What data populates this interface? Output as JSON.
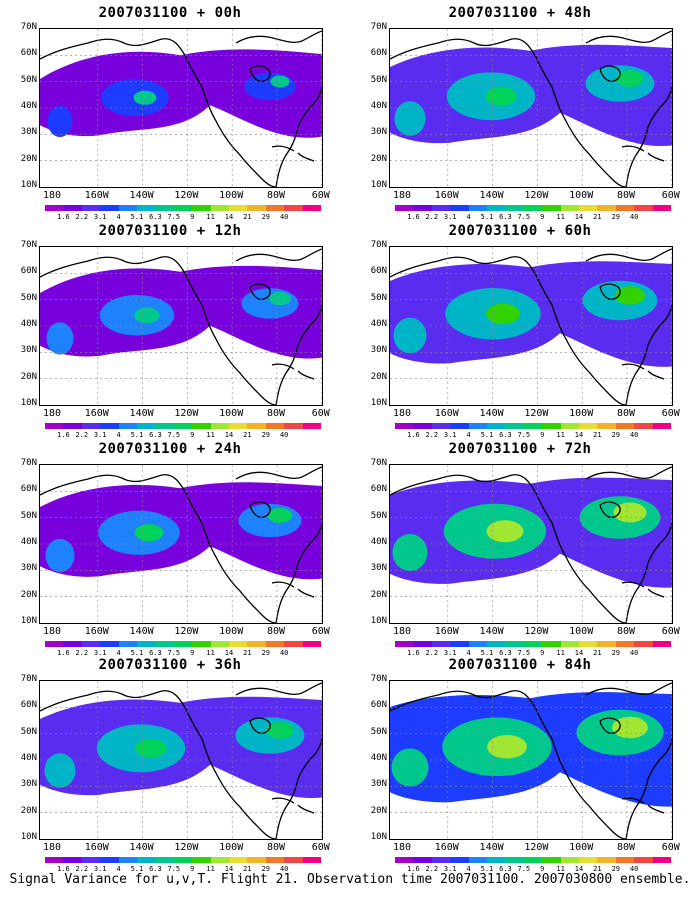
{
  "panels": [
    {
      "title": "2007031100 + 00h",
      "intensity": 0.25
    },
    {
      "title": "2007031100 + 48h",
      "intensity": 0.55
    },
    {
      "title": "2007031100 + 12h",
      "intensity": 0.35
    },
    {
      "title": "2007031100 + 60h",
      "intensity": 0.65
    },
    {
      "title": "2007031100 + 24h",
      "intensity": 0.45
    },
    {
      "title": "2007031100 + 72h",
      "intensity": 0.75
    },
    {
      "title": "2007031100 + 36h",
      "intensity": 0.55
    },
    {
      "title": "2007031100 + 84h",
      "intensity": 0.85
    }
  ],
  "y_ticks": [
    "70N",
    "60N",
    "50N",
    "40N",
    "30N",
    "20N",
    "10N"
  ],
  "x_ticks": [
    "180",
    "160W",
    "140W",
    "120W",
    "100W",
    "80W",
    "60W"
  ],
  "colorbar": {
    "labels": [
      "1.6",
      "2.2",
      "3.1",
      "4",
      "5.1",
      "6.3",
      "7.5",
      "9",
      "11",
      "14",
      "21",
      "29",
      "40"
    ],
    "colors": [
      "#a000c8",
      "#7800dc",
      "#5a2cf0",
      "#1e3cff",
      "#1e82ff",
      "#00b4c8",
      "#00c88c",
      "#00d25a",
      "#32d200",
      "#a0e632",
      "#e6dc32",
      "#f0b428",
      "#f07828",
      "#f04646",
      "#f00082"
    ]
  },
  "caption": "Signal Variance for u,v,T. Flight 21. Observation time 2007031100. 2007030800 ensemble."
}
